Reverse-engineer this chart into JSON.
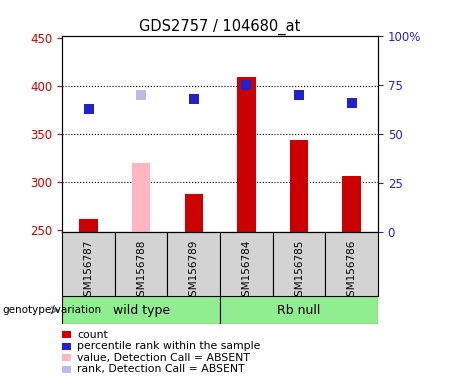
{
  "title": "GDS2757 / 104680_at",
  "samples": [
    "GSM156787",
    "GSM156788",
    "GSM156789",
    "GSM156784",
    "GSM156785",
    "GSM156786"
  ],
  "bar_values": [
    262,
    320,
    288,
    410,
    344,
    307
  ],
  "bar_colors": [
    "#cc0000",
    "#ffb6c1",
    "#cc0000",
    "#cc0000",
    "#cc0000",
    "#cc0000"
  ],
  "rank_values": [
    63,
    70,
    68,
    75,
    70,
    66
  ],
  "rank_colors": [
    "#2222cc",
    "#b8bce8",
    "#2222cc",
    "#2222cc",
    "#2222cc",
    "#2222cc"
  ],
  "absent_samples": [
    1
  ],
  "ymin": 248,
  "ymax": 452,
  "yticks": [
    250,
    300,
    350,
    400,
    450
  ],
  "y2min": 0,
  "y2max": 100,
  "y2ticks": [
    0,
    25,
    50,
    75,
    100
  ],
  "y2ticklabels": [
    "0",
    "25",
    "50",
    "75",
    "100%"
  ],
  "group1_label": "wild type",
  "group2_label": "Rb null",
  "group_color": "#90ee90",
  "legend_items": [
    {
      "label": "count",
      "color": "#cc0000"
    },
    {
      "label": "percentile rank within the sample",
      "color": "#2222cc"
    },
    {
      "label": "value, Detection Call = ABSENT",
      "color": "#ffb6c1"
    },
    {
      "label": "rank, Detection Call = ABSENT",
      "color": "#b8bce8"
    }
  ],
  "left_axis_color": "#cc0000",
  "right_axis_color": "#2222cc",
  "bar_width": 0.35,
  "rank_marker_size": 7
}
